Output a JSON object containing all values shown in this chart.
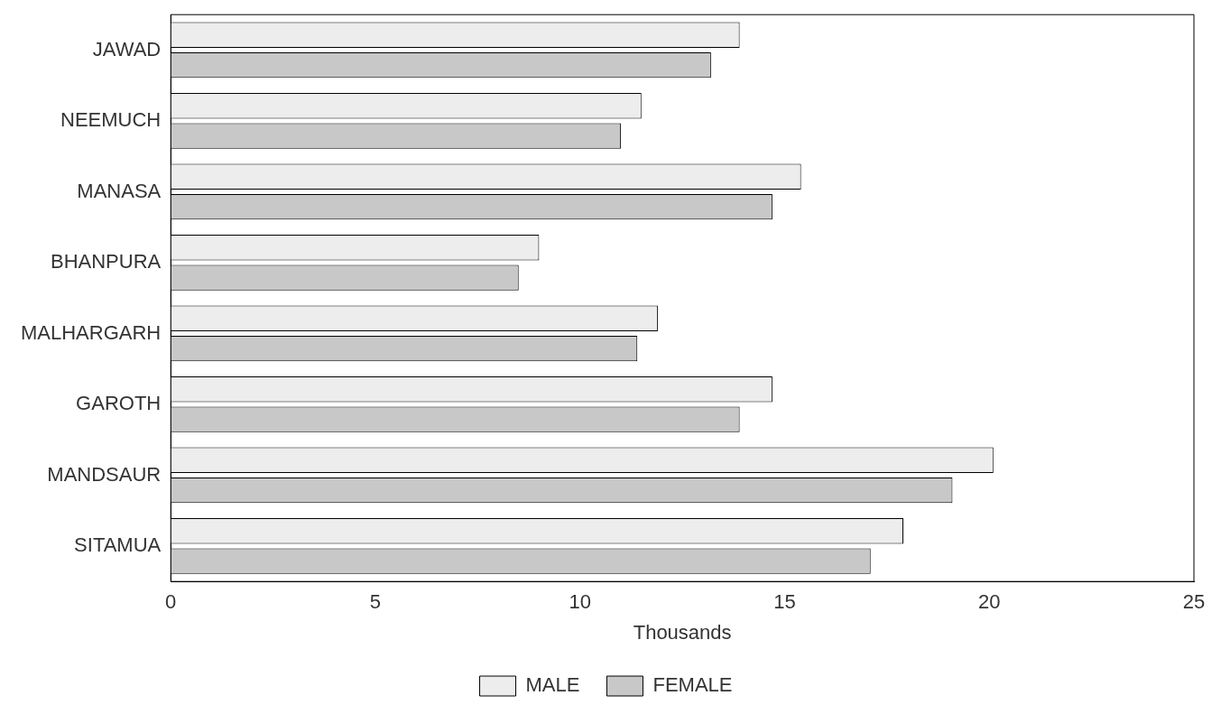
{
  "chart_data": {
    "type": "bar",
    "orientation": "horizontal",
    "xlabel": "Thousands",
    "categories": [
      "JAWAD",
      "NEEMUCH",
      "MANASA",
      "BHANPURA",
      "MALHARGARH",
      "GAROTH",
      "MANDSAUR",
      "SITAMUA"
    ],
    "series": [
      {
        "name": "MALE",
        "color": "#ededed",
        "values": [
          13.9,
          11.5,
          15.4,
          9.0,
          11.9,
          14.7,
          20.1,
          17.9
        ]
      },
      {
        "name": "FEMALE",
        "color": "#c8c8c8",
        "values": [
          13.2,
          11.0,
          14.7,
          8.5,
          11.4,
          13.9,
          19.1,
          17.1
        ]
      }
    ],
    "xlim": [
      0,
      25
    ],
    "xticks": [
      0,
      5,
      10,
      15,
      20,
      25
    ],
    "grid": false,
    "legend": "bottom"
  }
}
